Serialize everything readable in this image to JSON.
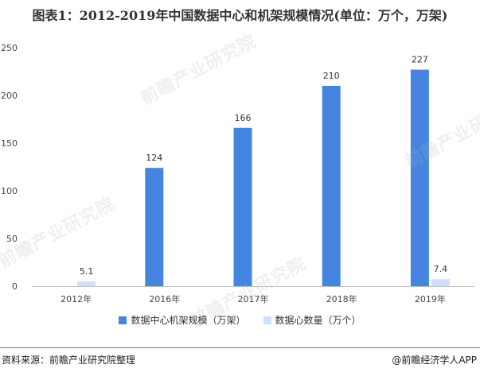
{
  "title": "图表1：2012-2019年中国数据中心和机架规模情况(单位：万个，万架)",
  "footer": {
    "source": "资料来源：前瞻产业研究院整理",
    "brand": "@前瞻经济学人APP"
  },
  "watermark": "前瞻产业研究院",
  "colors": {
    "series1": "#4585e0",
    "series2": "#cfe0fb",
    "axis": "#bfbfbf",
    "text": "#333333"
  },
  "chart_data": {
    "type": "bar",
    "categories": [
      "2012年",
      "2016年",
      "2017年",
      "2018年",
      "2019年"
    ],
    "series": [
      {
        "name": "数据中心机架规模（万架）",
        "values": [
          null,
          124,
          166,
          210,
          227
        ],
        "labels": [
          "",
          "124",
          "166",
          "210",
          "227"
        ]
      },
      {
        "name": "数据心数量（万个）",
        "values": [
          5.1,
          null,
          null,
          null,
          7.4
        ],
        "labels": [
          "5.1",
          "",
          "",
          "",
          "7.4"
        ]
      }
    ],
    "ylim": [
      0,
      250
    ],
    "yticks": [
      "0",
      "50",
      "100",
      "150",
      "200",
      "250"
    ],
    "grid": false,
    "legend_position": "bottom"
  }
}
